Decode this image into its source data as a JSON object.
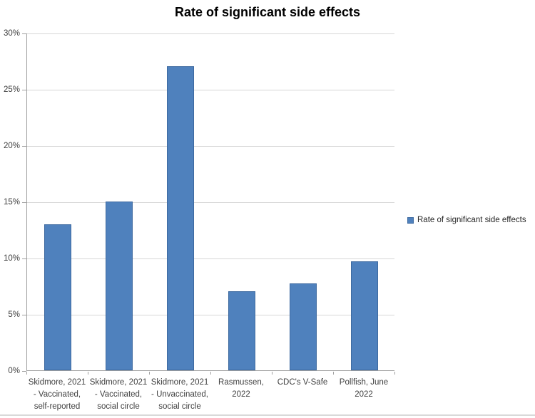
{
  "title": "Rate of significant side effects",
  "legend": {
    "label": "Rate of significant side effects"
  },
  "colors": {
    "bar_fill": "#4f81bd",
    "bar_border": "#3e6aa0",
    "gridline": "#d6d6d6",
    "axis_line": "#a0a0a0",
    "tick_label_text": "#404040",
    "title_text": "#000000",
    "bottom_rule": "#d9d9d9",
    "background": "#ffffff"
  },
  "y_axis": {
    "tick_labels": [
      "0%",
      "5%",
      "10%",
      "15%",
      "20%",
      "25%",
      "30%"
    ],
    "min": 0,
    "max": 30,
    "step": 5
  },
  "chart_data": {
    "type": "bar",
    "title": "Rate of significant side effects",
    "series": [
      {
        "name": "Rate of significant side effects",
        "values": [
          13,
          15,
          27,
          7,
          7.7,
          9.7
        ]
      }
    ],
    "categories": [
      "Skidmore, 2021 - Vaccinated, self-reported",
      "Skidmore, 2021 - Vaccinated, social circle",
      "Skidmore, 2021 - Unvaccinated, social circle",
      "Rasmussen, 2022",
      "CDC's V-Safe",
      "Pollfish, June 2022"
    ],
    "category_label_lines": [
      [
        "Skidmore, 2021",
        "- Vaccinated,",
        "self-reported"
      ],
      [
        "Skidmore, 2021",
        "- Vaccinated,",
        "social circle"
      ],
      [
        "Skidmore, 2021",
        "- Unvaccinated,",
        "social circle"
      ],
      [
        "Rasmussen,",
        "2022"
      ],
      [
        "CDC's V-Safe"
      ],
      [
        "Pollfish, June",
        "2022"
      ]
    ],
    "xlabel": "",
    "ylabel": "",
    "ylim": [
      0,
      30
    ],
    "y_tick_format": "percent",
    "grid": true,
    "legend_position": "right"
  }
}
